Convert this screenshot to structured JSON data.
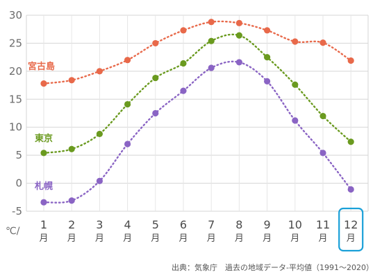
{
  "chart_data": {
    "type": "line",
    "unit_label": "℃/",
    "month_suffix": "月",
    "categories": [
      "1",
      "2",
      "3",
      "4",
      "5",
      "6",
      "7",
      "8",
      "9",
      "10",
      "11",
      "12"
    ],
    "ylim": [
      -5,
      30
    ],
    "yticks": [
      -5,
      0,
      5,
      10,
      15,
      20,
      25,
      30
    ],
    "grid": true,
    "highlight_category": "12",
    "series": [
      {
        "name": "宮古島",
        "color": "#e8694a",
        "values": [
          17.8,
          18.4,
          20.0,
          22.0,
          25.0,
          27.3,
          28.8,
          28.6,
          27.3,
          25.3,
          25.1,
          21.9
        ]
      },
      {
        "name": "東京",
        "color": "#6a9a1f",
        "values": [
          5.4,
          6.1,
          8.8,
          14.1,
          18.8,
          21.4,
          25.4,
          26.4,
          22.5,
          17.6,
          12.0,
          7.4
        ]
      },
      {
        "name": "札幌",
        "color": "#8a64c4",
        "values": [
          -3.4,
          -3.1,
          0.4,
          7.0,
          12.5,
          16.5,
          20.6,
          21.6,
          18.2,
          11.2,
          5.4,
          -1.1
        ]
      }
    ],
    "source": "出典：気象庁　過去の地域データ-平均値（1991〜2020）"
  }
}
